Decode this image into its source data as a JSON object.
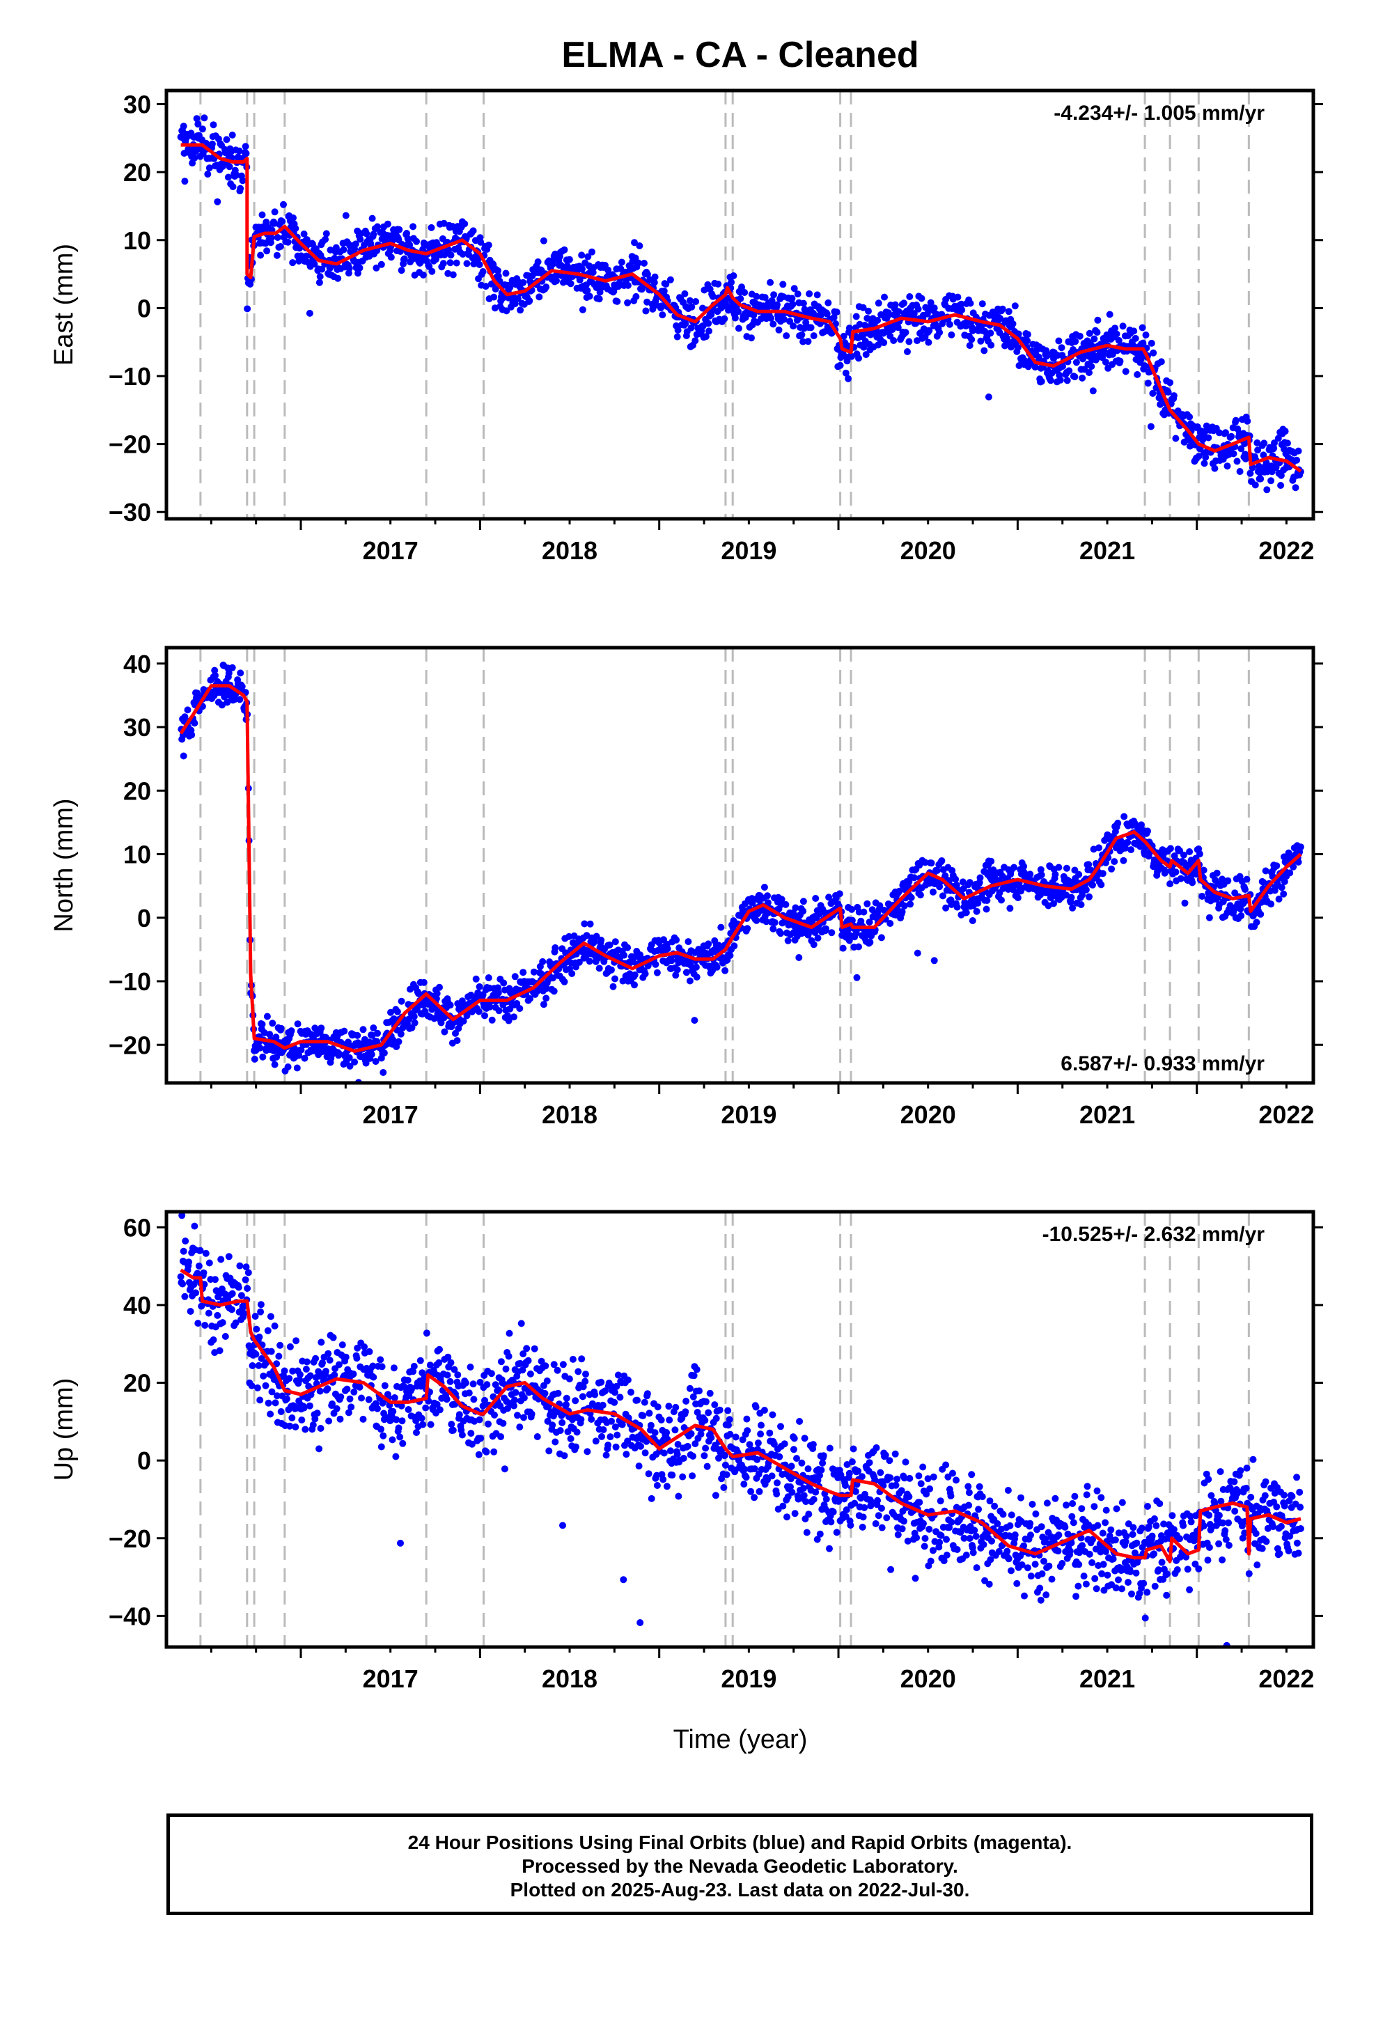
{
  "title": "ELMA  - CA - Cleaned",
  "xlabel": "Time (year)",
  "footer": {
    "line1": "24 Hour Positions Using Final Orbits (blue) and Rapid Orbits (magenta).",
    "line2": "Processed by the Nevada Geodetic Laboratory.",
    "line3": "Plotted on 2025-Aug-23. Last data on 2022-Jul-30."
  },
  "colors": {
    "final_orbits": "#0000ff",
    "model": "#ff0000",
    "event_lines": "#bbbbbb"
  },
  "x_ticks": [
    "2017",
    "2018",
    "2019",
    "2020",
    "2021",
    "2022"
  ],
  "chart_data": [
    {
      "type": "scatter",
      "ylabel": "East (mm)",
      "rate": "-4.234+/- 1.005 mm/yr",
      "rate_position": "top-right",
      "xlim": [
        2016.25,
        2022.65
      ],
      "ylim": [
        -31,
        32
      ],
      "yticks": [
        30,
        20,
        10,
        0,
        -10,
        -20,
        -30
      ],
      "event_lines": [
        2016.44,
        2016.7,
        2016.74,
        2016.91,
        2017.7,
        2018.02,
        2019.37,
        2019.41,
        2020.01,
        2020.07,
        2021.71,
        2021.85,
        2022.01,
        2022.29
      ],
      "model": {
        "x": [
          2016.33,
          2016.45,
          2016.55,
          2016.62,
          2016.68,
          2016.7,
          2016.7,
          2016.72,
          2016.74,
          2016.8,
          2016.86,
          2016.91,
          2017.0,
          2017.1,
          2017.2,
          2017.35,
          2017.5,
          2017.6,
          2017.7,
          2017.8,
          2017.9,
          2018.0,
          2018.08,
          2018.15,
          2018.25,
          2018.4,
          2018.55,
          2018.7,
          2018.85,
          2019.0,
          2019.1,
          2019.2,
          2019.3,
          2019.37,
          2019.38,
          2019.41,
          2019.45,
          2019.55,
          2019.7,
          2019.85,
          2019.95,
          2020.01,
          2020.02,
          2020.07,
          2020.08,
          2020.2,
          2020.35,
          2020.5,
          2020.65,
          2020.8,
          2020.9,
          2021.0,
          2021.1,
          2021.2,
          2021.35,
          2021.5,
          2021.6,
          2021.7,
          2021.72,
          2021.85,
          2021.95,
          2022.01,
          2022.1,
          2022.2,
          2022.29,
          2022.3,
          2022.4,
          2022.5,
          2022.58
        ],
        "y": [
          24,
          24,
          22,
          21.5,
          21.5,
          22,
          5,
          4.5,
          10.5,
          11,
          11,
          12,
          9.5,
          7,
          6.5,
          8.5,
          9.5,
          8.5,
          8,
          9,
          10,
          8,
          4,
          2,
          2.5,
          5.5,
          5,
          4,
          5,
          2,
          -1,
          -2,
          0.5,
          2,
          3,
          1.5,
          0.5,
          -0.5,
          -0.5,
          -1.5,
          -2,
          -4.5,
          -6,
          -6.5,
          -3.5,
          -3,
          -1.5,
          -2,
          -1,
          -2,
          -2.5,
          -4.5,
          -8,
          -8.5,
          -6.5,
          -5.5,
          -6,
          -6,
          -7,
          -15,
          -18,
          -20,
          -21,
          -20,
          -19,
          -23,
          -22,
          -22.5,
          -24
        ]
      }
    },
    {
      "type": "scatter",
      "ylabel": "North (mm)",
      "rate": "6.587+/- 0.933 mm/yr",
      "rate_position": "bottom-right",
      "xlim": [
        2016.25,
        2022.65
      ],
      "ylim": [
        -26,
        42.5
      ],
      "yticks": [
        40,
        30,
        20,
        10,
        0,
        -10,
        -20
      ],
      "event_lines": [
        2016.44,
        2016.7,
        2016.74,
        2016.91,
        2017.7,
        2018.02,
        2019.37,
        2019.41,
        2020.01,
        2020.07,
        2021.71,
        2021.85,
        2022.01,
        2022.29
      ],
      "model": {
        "x": [
          2016.33,
          2016.4,
          2016.5,
          2016.6,
          2016.68,
          2016.7,
          2016.72,
          2016.74,
          2016.85,
          2016.91,
          2017.0,
          2017.15,
          2017.3,
          2017.45,
          2017.58,
          2017.7,
          2017.85,
          2018.0,
          2018.15,
          2018.3,
          2018.45,
          2018.58,
          2018.7,
          2018.85,
          2019.0,
          2019.1,
          2019.2,
          2019.3,
          2019.37,
          2019.41,
          2019.5,
          2019.58,
          2019.7,
          2019.85,
          2020.01,
          2020.02,
          2020.07,
          2020.08,
          2020.2,
          2020.35,
          2020.5,
          2020.58,
          2020.7,
          2020.85,
          2021.0,
          2021.15,
          2021.3,
          2021.4,
          2021.45,
          2021.55,
          2021.65,
          2021.71,
          2021.8,
          2021.85,
          2021.86,
          2021.95,
          2022.01,
          2022.02,
          2022.1,
          2022.2,
          2022.29,
          2022.3,
          2022.4,
          2022.5,
          2022.58
        ],
        "y": [
          29,
          32,
          36.5,
          36.5,
          35,
          34,
          -9,
          -19,
          -19.5,
          -20.5,
          -19.5,
          -19.5,
          -21,
          -20,
          -15,
          -12,
          -16,
          -13,
          -13,
          -11,
          -7,
          -4,
          -6,
          -8,
          -6,
          -5.5,
          -6.5,
          -6.5,
          -5,
          -3,
          1,
          2,
          0,
          -1.5,
          1.5,
          -1.5,
          -1,
          -1.5,
          -1.5,
          3,
          7,
          6,
          3,
          5,
          6,
          5,
          4.5,
          6,
          8,
          12.5,
          13.5,
          12,
          9,
          8,
          9,
          7,
          9,
          6,
          4,
          3,
          3.5,
          1,
          5,
          8,
          10
        ]
      }
    },
    {
      "type": "scatter",
      "ylabel": "Up (mm)",
      "rate": "-10.525+/- 2.632 mm/yr",
      "rate_position": "top-right",
      "xlim": [
        2016.25,
        2022.65
      ],
      "ylim": [
        -48,
        64
      ],
      "yticks": [
        60,
        40,
        20,
        0,
        -20,
        -40
      ],
      "event_lines": [
        2016.44,
        2016.7,
        2016.74,
        2016.91,
        2017.7,
        2018.02,
        2019.37,
        2019.41,
        2020.01,
        2020.07,
        2021.71,
        2021.85,
        2022.01,
        2022.29
      ],
      "model": {
        "x": [
          2016.33,
          2016.4,
          2016.44,
          2016.45,
          2016.55,
          2016.65,
          2016.7,
          2016.72,
          2016.74,
          2016.85,
          2016.91,
          2017.0,
          2017.2,
          2017.35,
          2017.5,
          2017.6,
          2017.7,
          2017.71,
          2017.8,
          2017.9,
          2018.0,
          2018.02,
          2018.15,
          2018.25,
          2018.35,
          2018.5,
          2018.6,
          2018.75,
          2018.9,
          2019.0,
          2019.2,
          2019.3,
          2019.37,
          2019.41,
          2019.55,
          2019.7,
          2019.85,
          2019.95,
          2020.01,
          2020.07,
          2020.08,
          2020.2,
          2020.35,
          2020.5,
          2020.65,
          2020.8,
          2020.95,
          2021.1,
          2021.25,
          2021.4,
          2021.55,
          2021.65,
          2021.71,
          2021.72,
          2021.8,
          2021.85,
          2021.86,
          2021.95,
          2022.01,
          2022.02,
          2022.1,
          2022.2,
          2022.28,
          2022.29,
          2022.3,
          2022.4,
          2022.5,
          2022.58
        ],
        "y": [
          49,
          47,
          47,
          41,
          40,
          41,
          41,
          33,
          31,
          24,
          18,
          17,
          21,
          20,
          15,
          15,
          16,
          22,
          19,
          14,
          12,
          12,
          19,
          20,
          16,
          12,
          13,
          12,
          8,
          3,
          9,
          8,
          3,
          1,
          2,
          -2,
          -6,
          -8,
          -9,
          -9,
          -5,
          -6,
          -11,
          -14,
          -13,
          -16,
          -22,
          -24,
          -21,
          -18,
          -24,
          -25,
          -25,
          -23,
          -22,
          -26,
          -20,
          -24,
          -23,
          -13,
          -12,
          -11,
          -12,
          -24,
          -15,
          -14,
          -16,
          -15
        ]
      }
    }
  ]
}
